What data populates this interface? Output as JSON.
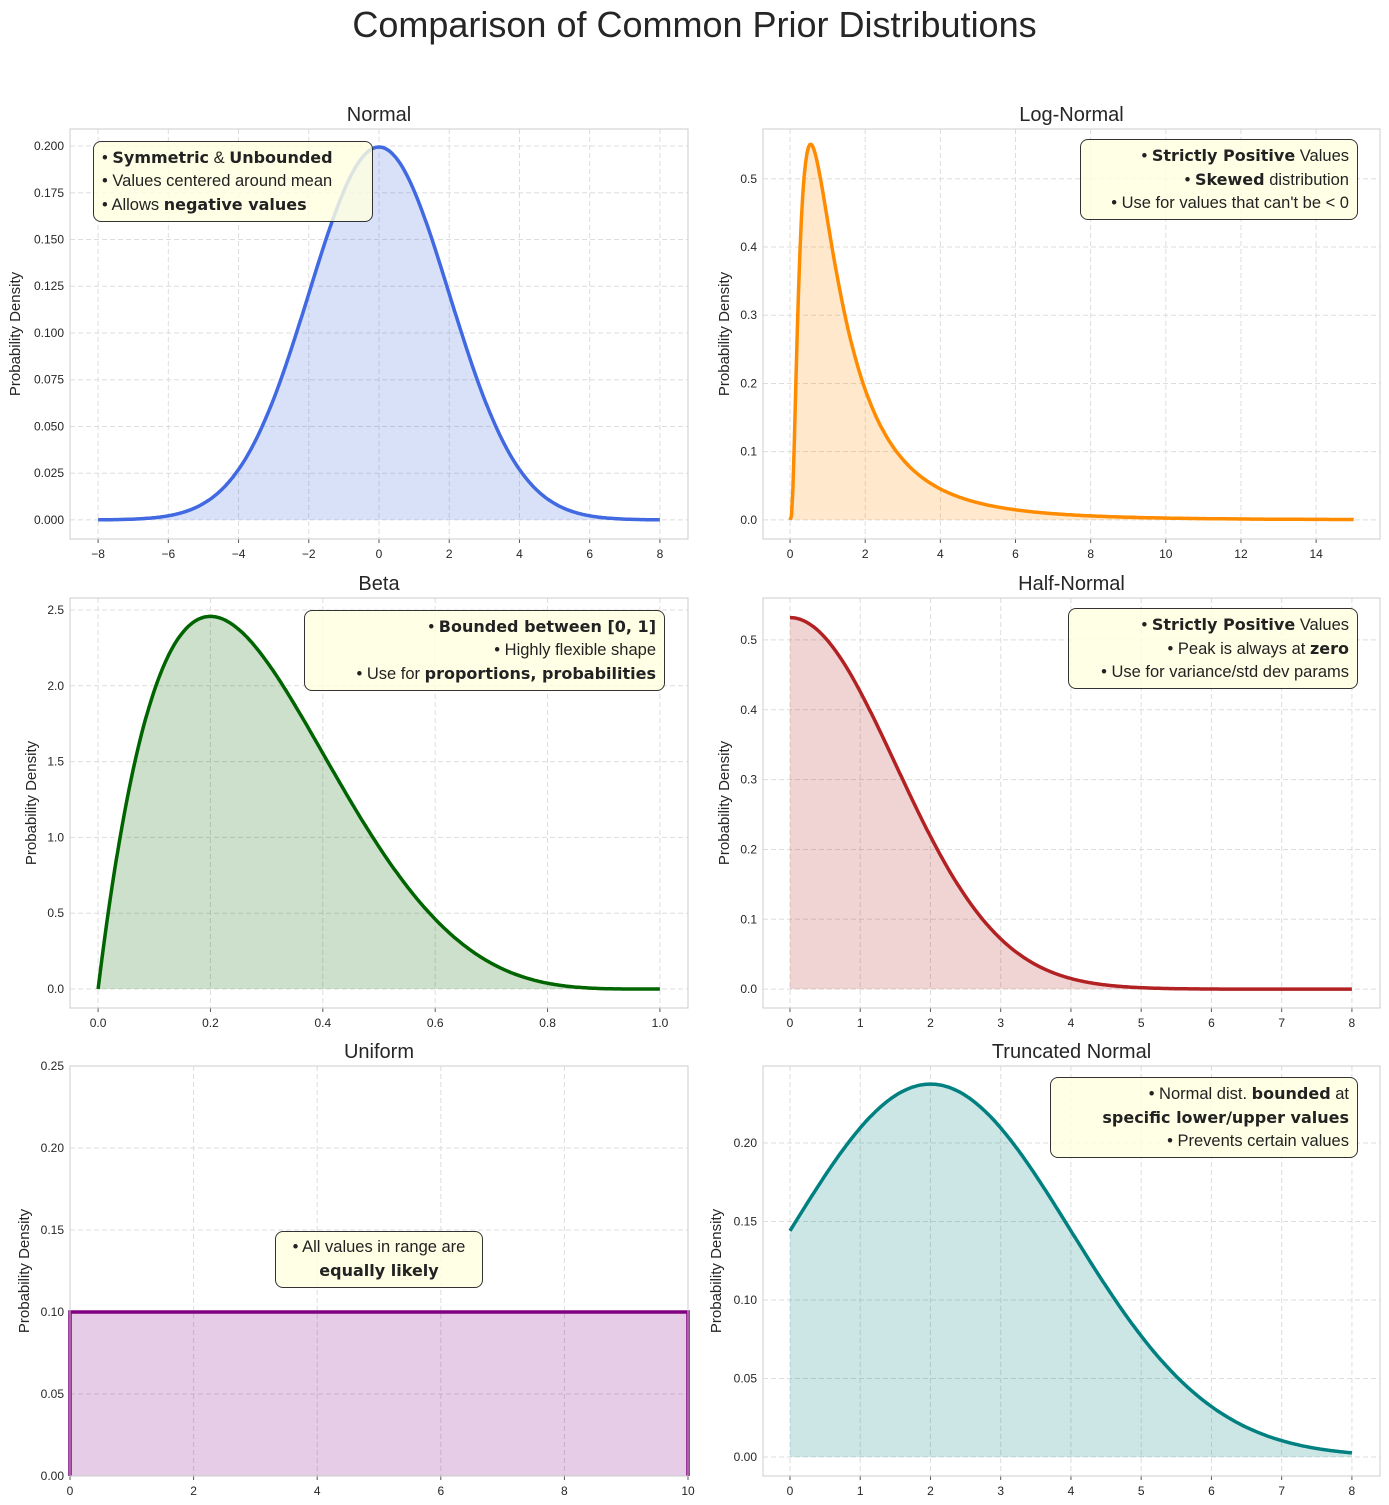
{
  "title": "Comparison of Common Prior Distributions",
  "chart_data": [
    {
      "type": "area",
      "title": "Normal",
      "ylabel": "Probability Density",
      "xlabel": "",
      "color": "#4169E1",
      "grid": true,
      "distribution": {
        "family": "normal",
        "mu": 0,
        "sigma": 2,
        "x_range": [
          -8,
          8
        ]
      },
      "xlim": [
        -8.8,
        8.8
      ],
      "ylim": [
        -0.0102,
        0.2091
      ],
      "xticks": [
        -8,
        -6,
        -4,
        -2,
        0,
        2,
        4,
        6,
        8
      ],
      "xtick_labels": [
        "−8",
        "−6",
        "−4",
        "−2",
        "0",
        "2",
        "4",
        "6",
        "8"
      ],
      "yticks": [
        0,
        0.025,
        0.05,
        0.075,
        0.1,
        0.125,
        0.15,
        0.175,
        0.2
      ],
      "ytick_labels": [
        "0.000",
        "0.025",
        "0.050",
        "0.075",
        "0.100",
        "0.125",
        "0.150",
        "0.175",
        "0.200"
      ],
      "annotation": {
        "align": "left",
        "lines": [
          [
            {
              "t": "• ",
              "b": false
            },
            {
              "t": "Symmetric",
              "b": true
            },
            {
              "t": " & ",
              "b": false
            },
            {
              "t": "Unbounded",
              "b": true
            }
          ],
          [
            {
              "t": "• Values centered around mean",
              "b": false
            }
          ],
          [
            {
              "t": "• Allows ",
              "b": false
            },
            {
              "t": "negative values",
              "b": true
            }
          ]
        ]
      }
    },
    {
      "type": "area",
      "title": "Log-Normal",
      "ylabel": "Probability Density",
      "xlabel": "",
      "color": "#FF8C00",
      "grid": true,
      "distribution": {
        "family": "lognormal",
        "mu": 0.19,
        "sigma": 0.89,
        "x_range": [
          0,
          15
        ]
      },
      "xlim": [
        -0.72,
        15.7
      ],
      "ylim": [
        -0.028,
        0.573
      ],
      "xticks": [
        0,
        2,
        4,
        6,
        8,
        10,
        12,
        14
      ],
      "xtick_labels": [
        "0",
        "2",
        "4",
        "6",
        "8",
        "10",
        "12",
        "14"
      ],
      "yticks": [
        0,
        0.1,
        0.2,
        0.3,
        0.4,
        0.5
      ],
      "ytick_labels": [
        "0.0",
        "0.1",
        "0.2",
        "0.3",
        "0.4",
        "0.5"
      ],
      "annotation": {
        "align": "right",
        "lines": [
          [
            {
              "t": "• ",
              "b": false
            },
            {
              "t": "Strictly Positive",
              "b": true
            },
            {
              "t": " Values",
              "b": false
            }
          ],
          [
            {
              "t": "• ",
              "b": false
            },
            {
              "t": "Skewed",
              "b": true
            },
            {
              "t": " distribution",
              "b": false
            }
          ],
          [
            {
              "t": "• Use for values that can't be < 0",
              "b": false
            }
          ]
        ]
      }
    },
    {
      "type": "area",
      "title": "Beta",
      "ylabel": "Probability Density",
      "xlabel": "",
      "color": "#006400",
      "grid": true,
      "distribution": {
        "family": "beta",
        "a": 2,
        "b": 5,
        "x_range": [
          0,
          1
        ]
      },
      "xlim": [
        -0.05,
        1.05
      ],
      "ylim": [
        -0.125,
        2.579
      ],
      "xticks": [
        0,
        0.2,
        0.4,
        0.6,
        0.8,
        1.0
      ],
      "xtick_labels": [
        "0.0",
        "0.2",
        "0.4",
        "0.6",
        "0.8",
        "1.0"
      ],
      "yticks": [
        0,
        0.5,
        1.0,
        1.5,
        2.0,
        2.5
      ],
      "ytick_labels": [
        "0.0",
        "0.5",
        "1.0",
        "1.5",
        "2.0",
        "2.5"
      ],
      "annotation": {
        "align": "right",
        "lines": [
          [
            {
              "t": "• ",
              "b": false
            },
            {
              "t": "Bounded between [0, 1]",
              "b": true
            }
          ],
          [
            {
              "t": "• Highly flexible shape",
              "b": false
            }
          ],
          [
            {
              "t": "• Use for ",
              "b": false
            },
            {
              "t": "proportions, probabilities",
              "b": true
            }
          ]
        ]
      }
    },
    {
      "type": "area",
      "title": "Half-Normal",
      "ylabel": "Probability Density",
      "xlabel": "",
      "color": "#B22222",
      "grid": true,
      "distribution": {
        "family": "halfnormal",
        "sigma": 1.5,
        "x_range": [
          0,
          8
        ]
      },
      "xlim": [
        -0.384,
        8.4
      ],
      "ylim": [
        -0.027,
        0.56
      ],
      "xticks": [
        0,
        1,
        2,
        3,
        4,
        5,
        6,
        7,
        8
      ],
      "xtick_labels": [
        "0",
        "1",
        "2",
        "3",
        "4",
        "5",
        "6",
        "7",
        "8"
      ],
      "yticks": [
        0,
        0.1,
        0.2,
        0.3,
        0.4,
        0.5
      ],
      "ytick_labels": [
        "0.0",
        "0.1",
        "0.2",
        "0.3",
        "0.4",
        "0.5"
      ],
      "annotation": {
        "align": "right",
        "lines": [
          [
            {
              "t": "• ",
              "b": false
            },
            {
              "t": "Strictly Positive",
              "b": true
            },
            {
              "t": " Values",
              "b": false
            }
          ],
          [
            {
              "t": "• Peak is always at ",
              "b": false
            },
            {
              "t": "zero",
              "b": true
            }
          ],
          [
            {
              "t": "• Use for variance/std dev params",
              "b": false
            }
          ]
        ]
      }
    },
    {
      "type": "area",
      "title": "Uniform",
      "ylabel": "Probability Density",
      "xlabel": "",
      "color": "#800080",
      "grid": true,
      "distribution": {
        "family": "uniform",
        "low": 0,
        "high": 10,
        "x_range": [
          0,
          10
        ]
      },
      "xlim": [
        0,
        10
      ],
      "ylim": [
        0,
        0.25
      ],
      "xticks": [
        0,
        2,
        4,
        6,
        8,
        10
      ],
      "xtick_labels": [
        "0",
        "2",
        "4",
        "6",
        "8",
        "10"
      ],
      "yticks": [
        0,
        0.05,
        0.1,
        0.15,
        0.2,
        0.25
      ],
      "ytick_labels": [
        "0.00",
        "0.05",
        "0.10",
        "0.15",
        "0.20",
        "0.25"
      ],
      "annotation": {
        "align": "center",
        "lines": [
          [
            {
              "t": "• All values in range are",
              "b": false
            }
          ],
          [
            {
              "t": "equally likely",
              "b": true
            }
          ]
        ]
      }
    },
    {
      "type": "area",
      "title": "Truncated Normal",
      "ylabel": "Probability Density",
      "xlabel": "",
      "color": "#008080",
      "grid": true,
      "distribution": {
        "family": "truncnormal",
        "mu": 2,
        "sigma": 2,
        "lower": 0,
        "upper": 8,
        "x_range": [
          0,
          8
        ]
      },
      "xlim": [
        -0.384,
        8.4
      ],
      "ylim": [
        -0.0121,
        0.249
      ],
      "xticks": [
        0,
        1,
        2,
        3,
        4,
        5,
        6,
        7,
        8
      ],
      "xtick_labels": [
        "0",
        "1",
        "2",
        "3",
        "4",
        "5",
        "6",
        "7",
        "8"
      ],
      "yticks": [
        0,
        0.05,
        0.1,
        0.15,
        0.2
      ],
      "ytick_labels": [
        "0.00",
        "0.05",
        "0.10",
        "0.15",
        "0.20"
      ],
      "annotation": {
        "align": "right",
        "lines": [
          [
            {
              "t": "• Normal dist. ",
              "b": false
            },
            {
              "t": "bounded",
              "b": true
            },
            {
              "t": " at",
              "b": false
            }
          ],
          [
            {
              "t": "specific lower/upper values",
              "b": true
            }
          ],
          [
            {
              "t": "• Prevents certain values",
              "b": false
            }
          ]
        ]
      }
    }
  ]
}
